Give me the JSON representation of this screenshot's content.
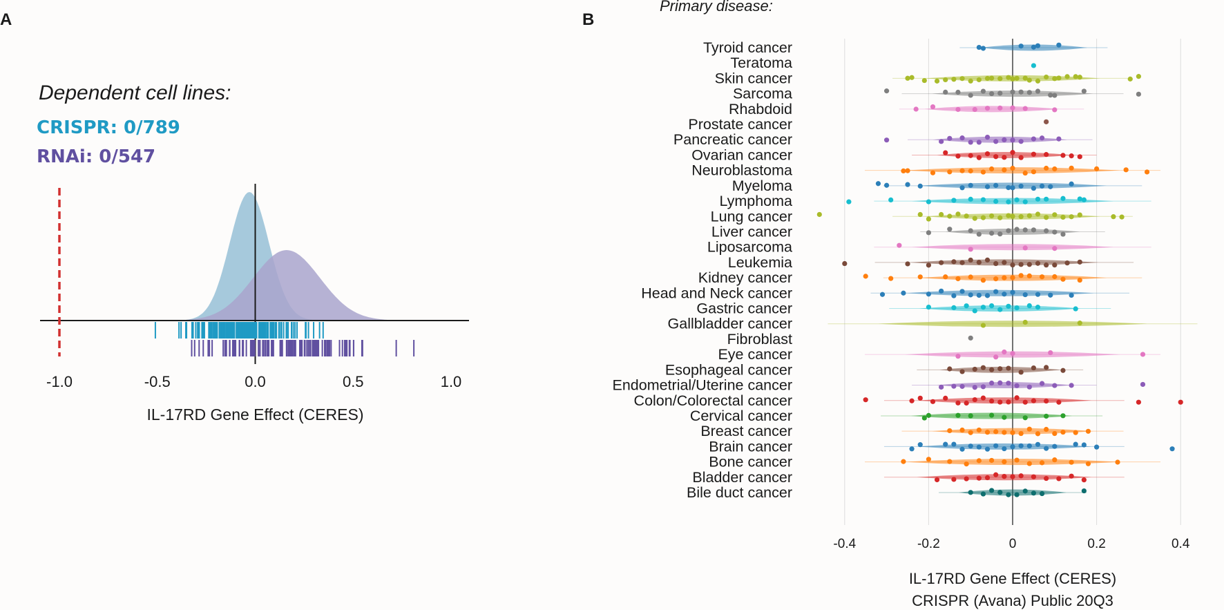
{
  "panel_a": {
    "letter": "A",
    "dependent_title": "Dependent cell lines:",
    "crispr_label": "CRISPR: 0/789",
    "rnai_label": "RNAi: 0/547",
    "colors": {
      "crispr": "#1f9ac4",
      "rnai": "#6050a0",
      "crispr_density": "#9cc3d8",
      "rnai_density": "#a9a4cc",
      "threshold": "#d23030"
    }
  },
  "panel_b": {
    "letter": "B",
    "primary_title": "Primary disease:"
  },
  "chart_data": [
    {
      "type": "area",
      "title": "Dependent cell lines:",
      "xlabel": "IL-17RD Gene Effect (CERES)",
      "ylabel": "",
      "xlim": [
        -1.2,
        1.05
      ],
      "x_ticks": [
        -1.0,
        -0.5,
        0.0,
        0.5,
        1.0
      ],
      "x_tick_labels": [
        "-1.0",
        "-0.5",
        "0.0",
        "0.5",
        "1.0"
      ],
      "threshold": -1.0,
      "series": [
        {
          "name": "CRISPR",
          "density_mean": -0.03,
          "density_sd": 0.1,
          "rug_range": [
            -0.5,
            0.42
          ],
          "n": 789,
          "dependent": 0
        },
        {
          "name": "RNAi",
          "density_mean": 0.16,
          "density_sd": 0.17,
          "rug_range": [
            -0.4,
            0.81
          ],
          "n": 547,
          "dependent": 0
        }
      ]
    },
    {
      "type": "scatter",
      "title": "Primary disease:",
      "xlabel": "IL-17RD Gene Effect (CERES)",
      "xlabel2": "CRISPR (Avana) Public 20Q3",
      "xlim": [
        -0.43,
        0.43
      ],
      "x_ticks": [
        -0.4,
        -0.2,
        0,
        0.2,
        0.4
      ],
      "x_tick_labels": [
        "-0.4",
        "-0.2",
        "0",
        "0.2",
        "0.4"
      ],
      "categories": [
        {
          "name": "Tyroid cancer",
          "color": "#2c7fb8",
          "center": 0.05,
          "spread": 0.08,
          "points": [
            -0.08,
            -0.07,
            0.02,
            0.05,
            0.06,
            0.11
          ]
        },
        {
          "name": "Teratoma",
          "color": "#17becf",
          "center": 0.05,
          "spread": 0.0,
          "points": [
            0.05
          ]
        },
        {
          "name": "Skin cancer",
          "color": "#a9bb2a",
          "center": 0.0,
          "spread": 0.13,
          "points": [
            -0.25,
            -0.24,
            -0.21,
            -0.18,
            -0.16,
            -0.14,
            -0.12,
            -0.1,
            -0.08,
            -0.06,
            -0.05,
            -0.03,
            -0.01,
            0.0,
            0.01,
            0.03,
            0.04,
            0.06,
            0.08,
            0.1,
            0.11,
            0.13,
            0.15,
            0.16,
            0.28,
            0.3
          ]
        },
        {
          "name": "Sarcoma",
          "color": "#7f7f7f",
          "center": 0.0,
          "spread": 0.12,
          "points": [
            -0.3,
            -0.16,
            -0.13,
            -0.1,
            -0.07,
            -0.05,
            -0.03,
            0.0,
            0.02,
            0.04,
            0.06,
            0.09,
            0.1,
            0.17,
            0.3
          ]
        },
        {
          "name": "Rhabdoid",
          "color": "#e377c2",
          "center": -0.05,
          "spread": 0.1,
          "points": [
            -0.23,
            -0.19,
            -0.13,
            -0.09,
            -0.06,
            -0.03,
            0.0,
            0.03,
            0.1
          ]
        },
        {
          "name": "Prostate cancer",
          "color": "#8c564b",
          "center": 0.08,
          "spread": 0.0,
          "points": [
            0.08
          ]
        },
        {
          "name": "Pancreatic cancer",
          "color": "#8c5cb8",
          "center": -0.03,
          "spread": 0.1,
          "points": [
            -0.3,
            -0.17,
            -0.15,
            -0.12,
            -0.1,
            -0.08,
            -0.06,
            -0.04,
            -0.02,
            0.0,
            0.02,
            0.05,
            0.07,
            0.11
          ]
        },
        {
          "name": "Ovarian cancer",
          "color": "#d62728",
          "center": -0.02,
          "spread": 0.1,
          "points": [
            -0.16,
            -0.13,
            -0.1,
            -0.08,
            -0.06,
            -0.04,
            -0.02,
            0.0,
            0.02,
            0.05,
            0.08,
            0.12,
            0.14,
            0.16
          ]
        },
        {
          "name": "Neuroblastoma",
          "color": "#ff7f0e",
          "center": 0.0,
          "spread": 0.16,
          "points": [
            -0.26,
            -0.25,
            -0.19,
            -0.15,
            -0.12,
            -0.1,
            -0.07,
            -0.05,
            -0.02,
            0.0,
            0.03,
            0.05,
            0.08,
            0.1,
            0.14,
            0.2,
            0.27,
            0.32
          ]
        },
        {
          "name": "Myeloma",
          "color": "#2c7fb8",
          "center": 0.0,
          "spread": 0.14,
          "points": [
            -0.32,
            -0.3,
            -0.25,
            -0.22,
            -0.12,
            -0.1,
            -0.06,
            -0.04,
            -0.01,
            0.0,
            0.02,
            0.05,
            0.07,
            0.09,
            0.14
          ]
        },
        {
          "name": "Lymphoma",
          "color": "#17becf",
          "center": 0.0,
          "spread": 0.15,
          "points": [
            -0.39,
            -0.29,
            -0.2,
            -0.14,
            -0.1,
            -0.07,
            -0.04,
            -0.01,
            0.01,
            0.03,
            0.06,
            0.08,
            0.12,
            0.16,
            0.17
          ]
        },
        {
          "name": "Lung cancer",
          "color": "#a9bb2a",
          "center": 0.0,
          "spread": 0.13,
          "points": [
            -0.46,
            -0.22,
            -0.2,
            -0.17,
            -0.15,
            -0.13,
            -0.11,
            -0.09,
            -0.07,
            -0.05,
            -0.03,
            -0.01,
            0.0,
            0.02,
            0.04,
            0.06,
            0.08,
            0.1,
            0.12,
            0.14,
            0.16,
            0.24,
            0.26
          ]
        },
        {
          "name": "Liver cancer",
          "color": "#7f7f7f",
          "center": 0.0,
          "spread": 0.1,
          "points": [
            -0.2,
            -0.15,
            -0.1,
            -0.08,
            -0.05,
            -0.03,
            -0.01,
            0.01,
            0.03,
            0.05,
            0.08,
            0.1,
            0.12
          ]
        },
        {
          "name": "Liposarcoma",
          "color": "#e377c2",
          "center": 0.0,
          "spread": 0.15,
          "points": [
            -0.27,
            -0.1,
            0.03,
            0.1
          ]
        },
        {
          "name": "Leukemia",
          "color": "#7a4a3a",
          "center": -0.02,
          "spread": 0.14,
          "points": [
            -0.4,
            -0.25,
            -0.2,
            -0.17,
            -0.14,
            -0.12,
            -0.1,
            -0.08,
            -0.06,
            -0.04,
            -0.02,
            0.0,
            0.02,
            0.04,
            0.06,
            0.08,
            0.1,
            0.13,
            0.16
          ]
        },
        {
          "name": "Kidney cancer",
          "color": "#ff7f0e",
          "center": 0.0,
          "spread": 0.14,
          "points": [
            -0.35,
            -0.29,
            -0.22,
            -0.16,
            -0.13,
            -0.1,
            -0.07,
            -0.04,
            -0.02,
            0.0,
            0.02,
            0.04,
            0.07,
            0.1,
            0.12,
            0.16
          ]
        },
        {
          "name": "Head and Neck cancer",
          "color": "#2c7fb8",
          "center": -0.03,
          "spread": 0.14,
          "points": [
            -0.31,
            -0.26,
            -0.2,
            -0.17,
            -0.14,
            -0.12,
            -0.1,
            -0.08,
            -0.06,
            -0.04,
            -0.02,
            0.0,
            0.03,
            0.06,
            0.09,
            0.14
          ]
        },
        {
          "name": "Gastric cancer",
          "color": "#17becf",
          "center": -0.03,
          "spread": 0.12,
          "points": [
            -0.2,
            -0.14,
            -0.11,
            -0.09,
            -0.07,
            -0.05,
            -0.03,
            -0.01,
            0.01,
            0.04,
            0.06,
            0.15
          ]
        },
        {
          "name": "Gallbladder cancer",
          "color": "#a9bb2a",
          "center": 0.0,
          "spread": 0.2,
          "points": [
            -0.07,
            0.03,
            0.16
          ]
        },
        {
          "name": "Fibroblast",
          "color": "#7f7f7f",
          "center": -0.1,
          "spread": 0.0,
          "points": [
            -0.1
          ]
        },
        {
          "name": "Eye cancer",
          "color": "#e377c2",
          "center": 0.0,
          "spread": 0.16,
          "points": [
            -0.13,
            -0.04,
            -0.02,
            0.0,
            0.09,
            0.31
          ]
        },
        {
          "name": "Esophageal cancer",
          "color": "#7a4a3a",
          "center": -0.03,
          "spread": 0.09,
          "points": [
            -0.15,
            -0.12,
            -0.09,
            -0.07,
            -0.05,
            -0.03,
            -0.01,
            0.02,
            0.05,
            0.08,
            0.12
          ]
        },
        {
          "name": "Endometrial/Uterine cancer",
          "color": "#8c5cb8",
          "center": -0.02,
          "spread": 0.1,
          "points": [
            -0.17,
            -0.14,
            -0.12,
            -0.09,
            -0.07,
            -0.05,
            -0.03,
            -0.01,
            0.01,
            0.04,
            0.07,
            0.1,
            0.14,
            0.31
          ]
        },
        {
          "name": "Colon/Colorectal cancer",
          "color": "#d62728",
          "center": -0.02,
          "spread": 0.13,
          "points": [
            -0.35,
            -0.24,
            -0.22,
            -0.19,
            -0.16,
            -0.13,
            -0.11,
            -0.09,
            -0.07,
            -0.05,
            -0.03,
            -0.01,
            0.01,
            0.03,
            0.05,
            0.08,
            0.11,
            0.3,
            0.4
          ]
        },
        {
          "name": "Cervical cancer",
          "color": "#2ca02c",
          "center": -0.05,
          "spread": 0.12,
          "points": [
            -0.21,
            -0.2,
            -0.13,
            -0.1,
            -0.05,
            -0.02,
            0.03,
            0.08,
            0.12
          ]
        },
        {
          "name": "Breast cancer",
          "color": "#ff7f0e",
          "center": 0.0,
          "spread": 0.12,
          "points": [
            -0.15,
            -0.12,
            -0.1,
            -0.08,
            -0.06,
            -0.04,
            -0.02,
            0.0,
            0.02,
            0.04,
            0.06,
            0.08,
            0.1,
            0.12,
            0.15,
            0.18
          ]
        },
        {
          "name": "Brain cancer",
          "color": "#2c7fb8",
          "center": -0.02,
          "spread": 0.13,
          "points": [
            -0.24,
            -0.22,
            -0.16,
            -0.14,
            -0.12,
            -0.1,
            -0.08,
            -0.06,
            -0.04,
            -0.02,
            0.0,
            0.02,
            0.04,
            0.06,
            0.08,
            0.1,
            0.15,
            0.17,
            0.2,
            0.38
          ]
        },
        {
          "name": "Bone cancer",
          "color": "#ff7f0e",
          "center": 0.0,
          "spread": 0.16,
          "points": [
            -0.26,
            -0.2,
            -0.15,
            -0.11,
            -0.08,
            -0.05,
            -0.02,
            0.01,
            0.04,
            0.07,
            0.1,
            0.14,
            0.18,
            0.25
          ]
        },
        {
          "name": "Bladder cancer",
          "color": "#d62728",
          "center": -0.02,
          "spread": 0.13,
          "points": [
            -0.18,
            -0.14,
            -0.11,
            -0.08,
            -0.06,
            -0.04,
            -0.02,
            0.0,
            0.02,
            0.05,
            0.08,
            0.11,
            0.14,
            0.17
          ]
        },
        {
          "name": "Bile duct cancer",
          "color": "#0e6e6e",
          "center": 0.0,
          "spread": 0.08,
          "points": [
            -0.1,
            -0.07,
            -0.05,
            -0.03,
            -0.01,
            0.01,
            0.03,
            0.05,
            0.07,
            0.17
          ]
        }
      ]
    }
  ]
}
